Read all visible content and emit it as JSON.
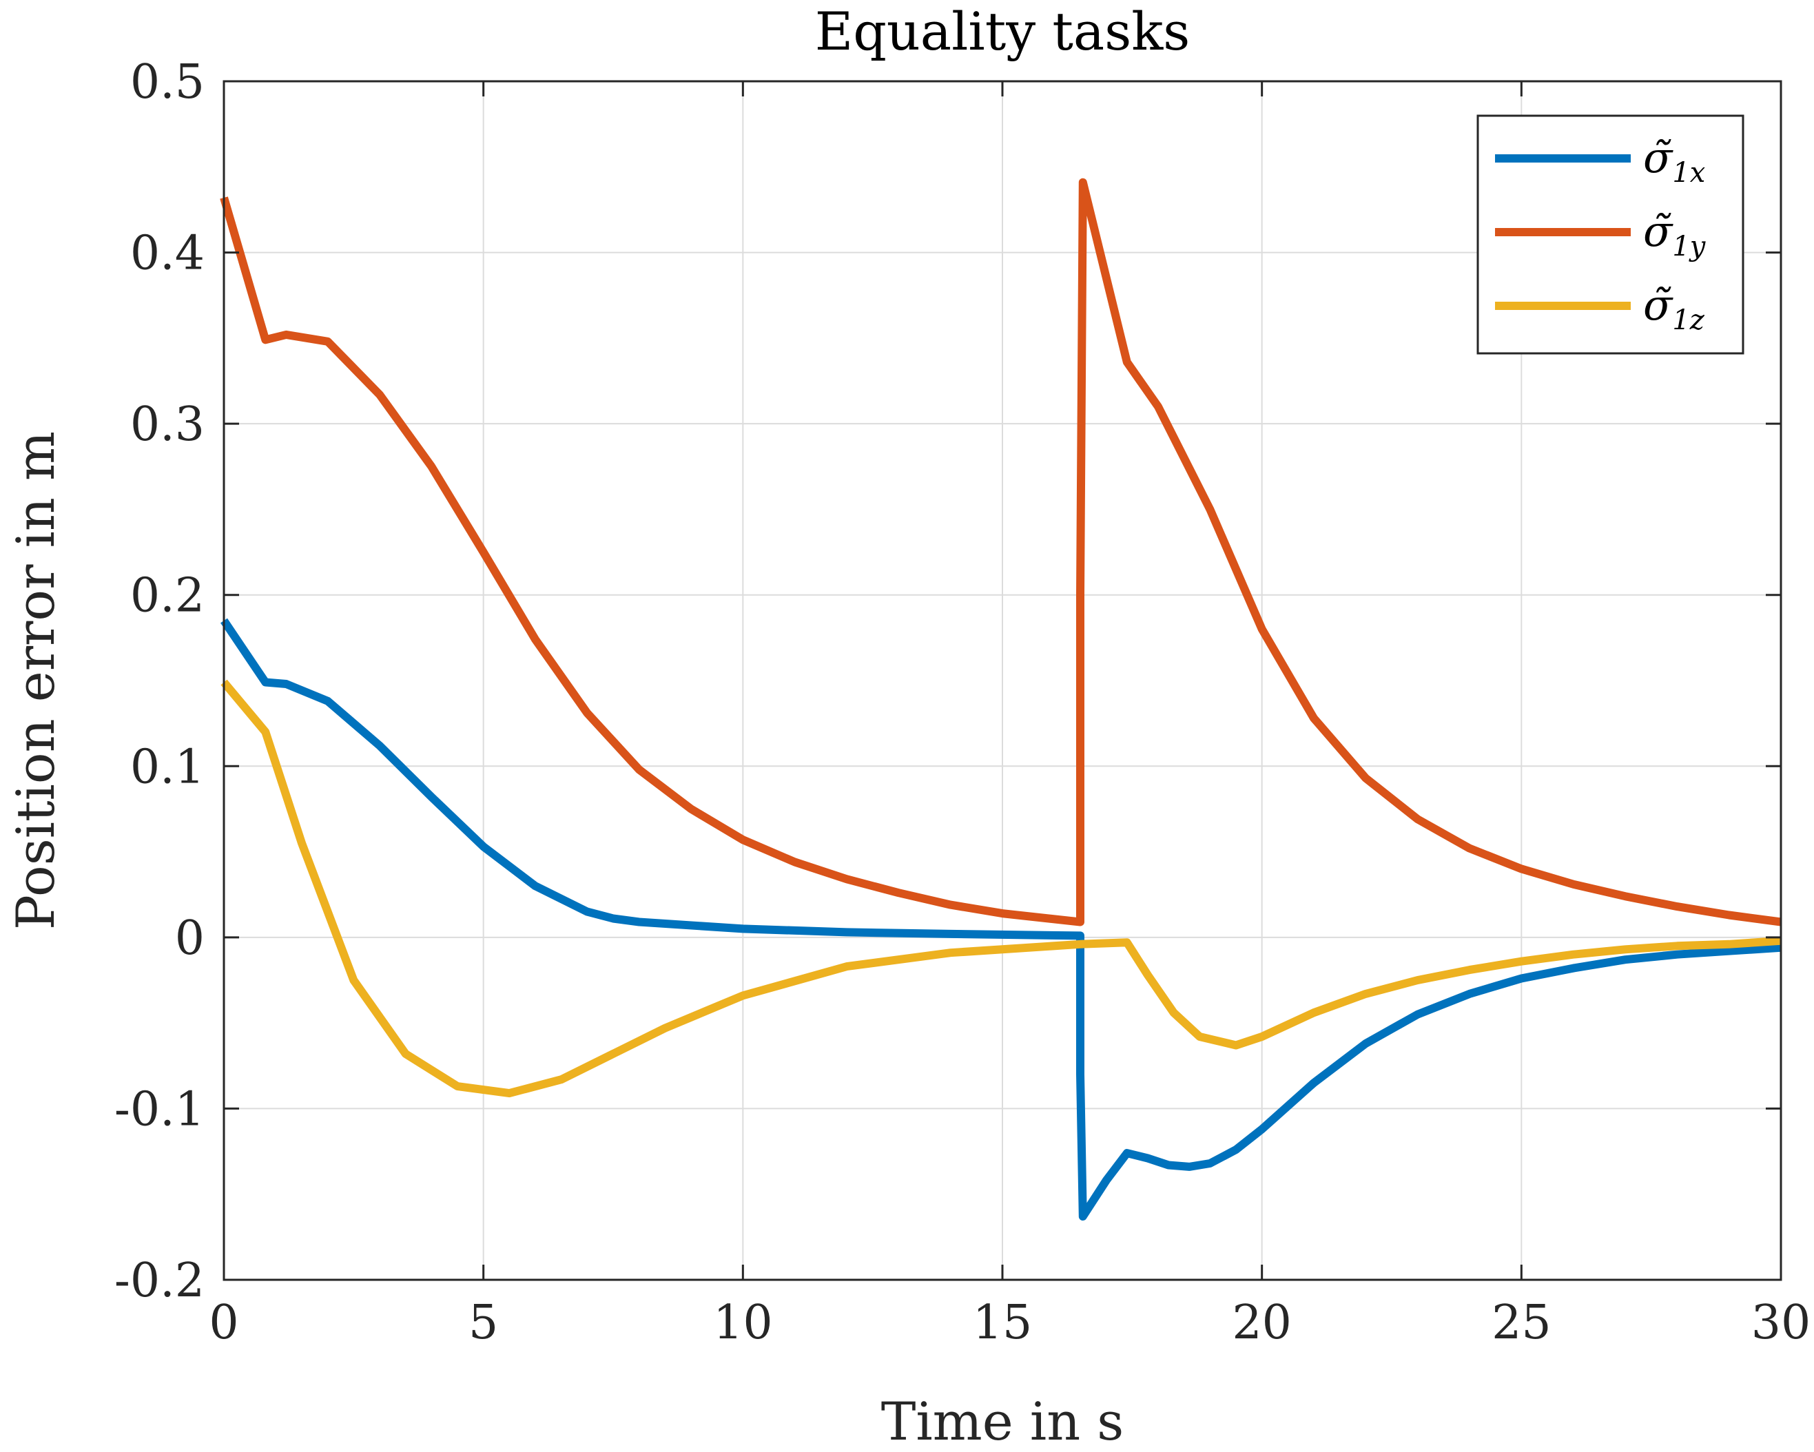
{
  "chart_data": {
    "type": "line",
    "title": "Equality tasks",
    "xlabel": "Time in s",
    "ylabel": "Position error in m",
    "xlim": [
      0,
      30
    ],
    "ylim": [
      -0.2,
      0.5
    ],
    "xticks": [
      0,
      5,
      10,
      15,
      20,
      25,
      30
    ],
    "xtick_labels": [
      "0",
      "5",
      "10",
      "15",
      "20",
      "25",
      "30"
    ],
    "yticks": [
      -0.2,
      -0.1,
      0,
      0.1,
      0.2,
      0.3,
      0.4,
      0.5
    ],
    "ytick_labels": [
      "-0.2",
      "-0.1",
      "0",
      "0.1",
      "0.2",
      "0.3",
      "0.4",
      "0.5"
    ],
    "grid": true,
    "legend_position": "top-right",
    "series": [
      {
        "name": "σ̃1x",
        "legend": {
          "base": "σ̃",
          "sub": "1x"
        },
        "color": "#0072BD",
        "x": [
          0,
          0.8,
          1.2,
          2,
          3,
          4,
          5,
          6,
          7,
          7.5,
          8,
          10,
          12,
          14,
          16.5,
          16.5,
          16.55,
          17,
          17.4,
          17.8,
          18.2,
          18.6,
          19,
          19.5,
          20,
          21,
          22,
          23,
          24,
          25,
          26,
          27,
          28,
          29,
          30
        ],
        "y": [
          0.185,
          0.149,
          0.148,
          0.138,
          0.112,
          0.082,
          0.053,
          0.03,
          0.015,
          0.011,
          0.009,
          0.005,
          0.003,
          0.002,
          0.001,
          -0.08,
          -0.163,
          -0.142,
          -0.126,
          -0.129,
          -0.133,
          -0.134,
          -0.132,
          -0.124,
          -0.112,
          -0.085,
          -0.062,
          -0.045,
          -0.033,
          -0.024,
          -0.018,
          -0.013,
          -0.01,
          -0.008,
          -0.006
        ]
      },
      {
        "name": "σ̃1y",
        "legend": {
          "base": "σ̃",
          "sub": "1y"
        },
        "color": "#D95319",
        "x": [
          0,
          0.8,
          1.2,
          2,
          3,
          4,
          5,
          6,
          7,
          8,
          9,
          10,
          11,
          12,
          13,
          14,
          15,
          16.5,
          16.5,
          16.55,
          17.4,
          18,
          19,
          20,
          21,
          22,
          23,
          24,
          25,
          26,
          27,
          28,
          29,
          30
        ],
        "y": [
          0.432,
          0.349,
          0.352,
          0.348,
          0.317,
          0.275,
          0.225,
          0.174,
          0.131,
          0.098,
          0.075,
          0.057,
          0.044,
          0.034,
          0.026,
          0.019,
          0.014,
          0.009,
          0.2,
          0.441,
          0.336,
          0.31,
          0.25,
          0.18,
          0.128,
          0.093,
          0.069,
          0.052,
          0.04,
          0.031,
          0.024,
          0.018,
          0.013,
          0.009
        ]
      },
      {
        "name": "σ̃1z",
        "legend": {
          "base": "σ̃",
          "sub": "1z"
        },
        "color": "#EDB120",
        "x": [
          0,
          0.8,
          1.5,
          2.5,
          3.5,
          4.5,
          5.5,
          6.5,
          7.5,
          8.5,
          10,
          12,
          14,
          16.5,
          17.4,
          17.8,
          18.3,
          18.8,
          19.5,
          20,
          21,
          22,
          23,
          24,
          25,
          26,
          27,
          28,
          29,
          30
        ],
        "y": [
          0.149,
          0.12,
          0.055,
          -0.025,
          -0.068,
          -0.087,
          -0.091,
          -0.083,
          -0.068,
          -0.053,
          -0.034,
          -0.017,
          -0.009,
          -0.004,
          -0.003,
          -0.022,
          -0.044,
          -0.058,
          -0.063,
          -0.058,
          -0.044,
          -0.033,
          -0.025,
          -0.019,
          -0.014,
          -0.01,
          -0.007,
          -0.005,
          -0.004,
          -0.002
        ]
      }
    ]
  }
}
